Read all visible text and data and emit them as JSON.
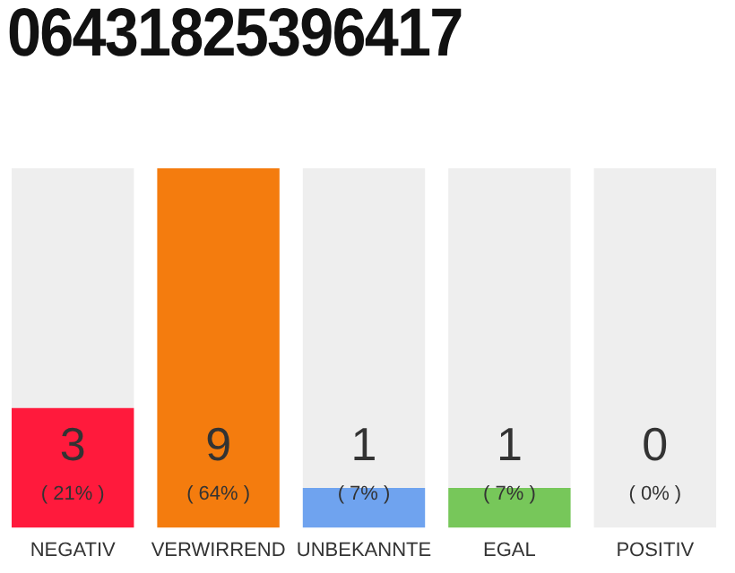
{
  "chart_data": {
    "type": "bar",
    "title": "06431825396417",
    "categories": [
      "NEGATIV",
      "VERWIRREND",
      "UNBEKANNTE",
      "EGAL",
      "POSITIV"
    ],
    "stacked": true,
    "series": [
      {
        "colors": [
          "#ff1a3c",
          "#f47c0e",
          "#6fa3ef",
          "#77c75a",
          "#c8c8c8"
        ],
        "values": [
          3,
          9,
          1,
          1,
          0
        ],
        "value_labels": [
          "3",
          "9",
          "1",
          "1",
          null
        ]
      },
      {
        "color": "#eeeeee",
        "values": [
          6,
          0,
          8,
          8,
          9
        ]
      }
    ],
    "annotations": [
      "( 21% )",
      "( 64% )",
      "( 7% )",
      "( 7% )",
      "( 0% )",
      {
        "text": "0",
        "x": "POSITIV",
        "y": 0
      }
    ],
    "grid": false,
    "tick_labels": "x",
    "legend": false
  }
}
